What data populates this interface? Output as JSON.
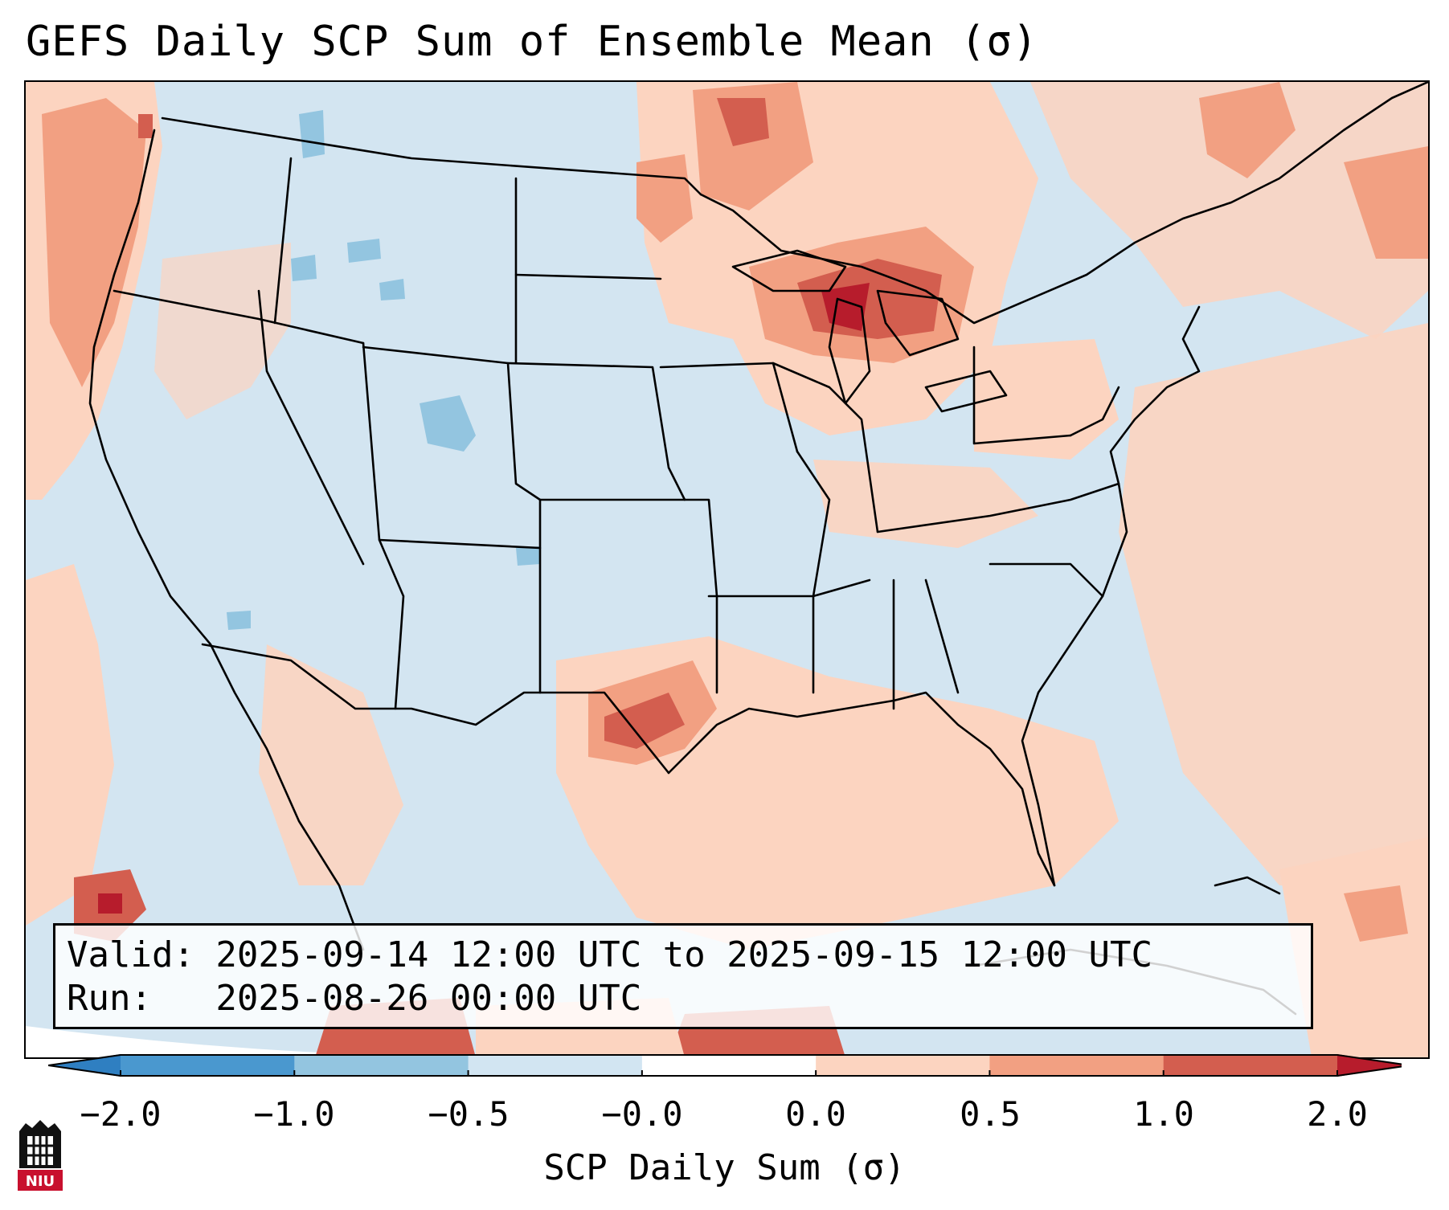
{
  "title": "GEFS Daily SCP Sum of Ensemble Mean (σ)",
  "info": {
    "valid_line": "Valid: 2025-09-14 12:00 UTC to 2025-09-15 12:00 UTC",
    "run_line": "Run:   2025-08-26 00:00 UTC"
  },
  "colorbar": {
    "label": "SCP Daily Sum (σ)",
    "tick_labels": [
      "−2.0",
      "−1.0",
      "−0.5",
      "−0.0",
      "0.0",
      "0.5",
      "1.0",
      "2.0"
    ],
    "bin_colors": [
      "#2f7fc1",
      "#4a98cf",
      "#93c5e0",
      "#d2e5f2",
      "#ffffff",
      "#fcd4c0",
      "#f2a082",
      "#d35e4f",
      "#b71c2c"
    ],
    "extend": "both"
  },
  "logo": {
    "text": "NIU"
  },
  "map": {
    "projection": "Lambert conformal, CONUS",
    "background_color": "#d3e5f1",
    "scale": {
      "min": -2.0,
      "max": 2.0,
      "units": "σ"
    },
    "anomaly_regions": [
      {
        "name": "Pacific Northwest coast",
        "level": 0.6
      },
      {
        "name": "Northern Minnesota / Ontario",
        "level": 0.9
      },
      {
        "name": "Michigan / Lake Huron",
        "level": 1.2
      },
      {
        "name": "Southeast Texas coast",
        "level": 0.9
      },
      {
        "name": "Gulf of Mexico",
        "level": 0.3
      },
      {
        "name": "Western Atlantic",
        "level": 0.3
      },
      {
        "name": "Eastern Pacific off Baja",
        "level": 1.4
      },
      {
        "name": "Colorado Rockies",
        "level": -0.7
      },
      {
        "name": "Western Montana",
        "level": -0.6
      }
    ]
  }
}
